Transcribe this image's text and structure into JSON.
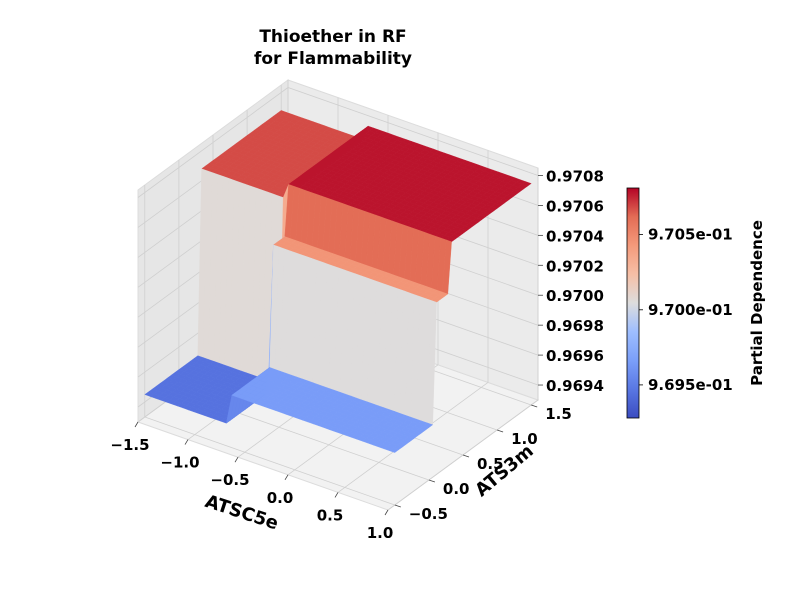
{
  "chart_data": {
    "type": "surface3d",
    "title_lines": [
      "Thioether in RF",
      "for Flammability"
    ],
    "xlabel": "ATSC5e",
    "ylabel": "ATS3m",
    "zlabel": "",
    "colorbar_label": "Partial Dependence",
    "colormap": "coolwarm",
    "x_ticks": [
      -1.5,
      -1.0,
      -0.5,
      0.0,
      0.5,
      1.0
    ],
    "x_tick_labels": [
      "−1.5",
      "−1.0",
      "−0.5",
      "0.0",
      "0.5",
      "1.0"
    ],
    "y_ticks": [
      -0.5,
      0.0,
      0.5,
      1.0,
      1.5
    ],
    "y_tick_labels": [
      "−0.5",
      "0.0",
      "0.5",
      "1.0",
      "1.5"
    ],
    "z_ticks": [
      0.9694,
      0.9696,
      0.9698,
      0.97,
      0.9702,
      0.9704,
      0.9706,
      0.9708
    ],
    "z_tick_labels": [
      "0.9694",
      "0.9696",
      "0.9698",
      "0.9700",
      "0.9702",
      "0.9704",
      "0.9706",
      "0.9708"
    ],
    "colorbar_ticks": [
      0.9695,
      0.97,
      0.9705
    ],
    "colorbar_tick_labels": [
      "9.695e-01",
      "9.700e-01",
      "9.705e-01"
    ],
    "xlim": [
      -1.5,
      1.0
    ],
    "ylim": [
      -0.6,
      1.6
    ],
    "zlim": [
      0.9693,
      0.97085
    ],
    "surface": {
      "x_breaks": [
        -1.5,
        -0.95,
        -0.65,
        1.0
      ],
      "y_breaks": [
        -0.5,
        0.1,
        0.3,
        1.5
      ],
      "z_grid": [
        [
          0.96945,
          0.96945,
          0.97068
        ],
        [
          0.96945,
          0.96945,
          0.97068
        ],
        [
          0.96965,
          0.97045,
          0.97078
        ]
      ]
    },
    "grid": true
  }
}
